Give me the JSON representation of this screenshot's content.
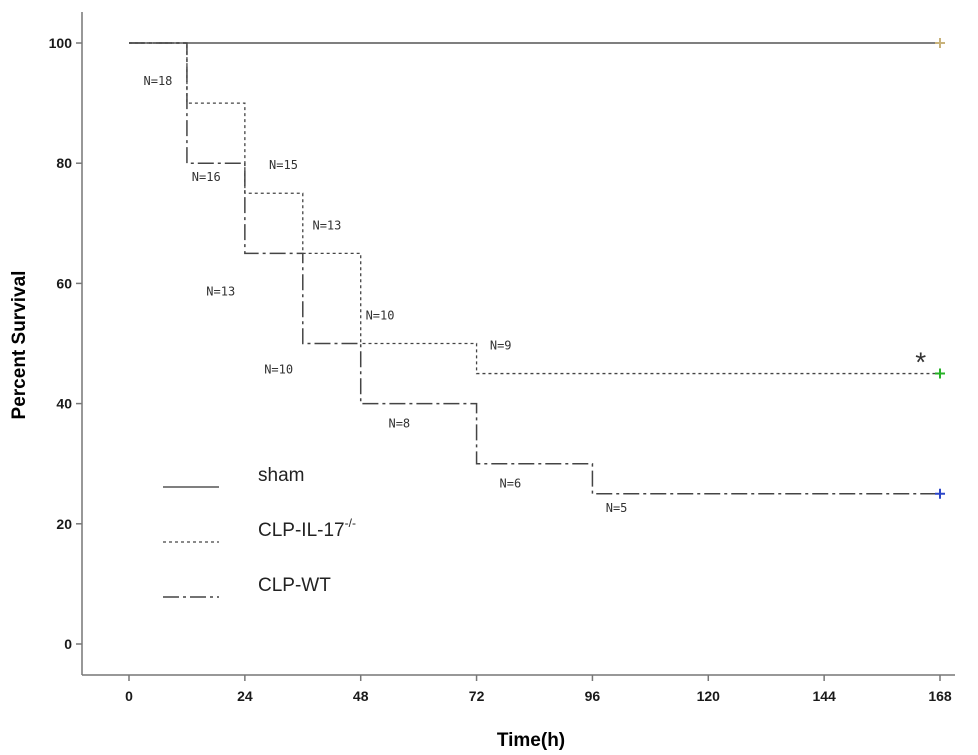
{
  "chart_data": {
    "type": "line",
    "title": "",
    "xlabel": "Time(h)",
    "ylabel": "Percent Survival",
    "xlim": [
      0,
      168
    ],
    "ylim": [
      0,
      100
    ],
    "x_ticks": [
      0,
      24,
      48,
      72,
      96,
      120,
      144,
      168
    ],
    "y_ticks": [
      0,
      20,
      40,
      60,
      80,
      100
    ],
    "grid": false,
    "legend_position": "bottom-left",
    "series": [
      {
        "name": "sham",
        "sup": "",
        "style": "solid",
        "color": "#555555",
        "censor_color": "#c8b27a",
        "x": [
          0,
          168
        ],
        "y": [
          100,
          100
        ]
      },
      {
        "name": "CLP-IL-17",
        "sup": "-/-",
        "style": "dotted",
        "color": "#444444",
        "censor_color": "#27b227",
        "x": [
          0,
          12,
          24,
          36,
          48,
          72,
          168
        ],
        "y": [
          100,
          90,
          75,
          65,
          50,
          45,
          45
        ]
      },
      {
        "name": "CLP-WT",
        "sup": "",
        "style": "dashdot",
        "color": "#444444",
        "censor_color": "#2c46c8",
        "x": [
          0,
          12,
          24,
          36,
          48,
          72,
          96,
          168
        ],
        "y": [
          100,
          80,
          65,
          50,
          40,
          30,
          25,
          25
        ]
      }
    ],
    "annotations": [
      {
        "text": "N=18",
        "x": 6,
        "y": 93
      },
      {
        "text": "N=16",
        "x": 16,
        "y": 77
      },
      {
        "text": "N=15",
        "x": 32,
        "y": 79
      },
      {
        "text": "N=13",
        "x": 41,
        "y": 69
      },
      {
        "text": "N=13",
        "x": 19,
        "y": 58
      },
      {
        "text": "N=10",
        "x": 52,
        "y": 54
      },
      {
        "text": "N=10",
        "x": 31,
        "y": 45
      },
      {
        "text": "N=9",
        "x": 77,
        "y": 49
      },
      {
        "text": "N=8",
        "x": 56,
        "y": 36
      },
      {
        "text": "N=6",
        "x": 79,
        "y": 26
      },
      {
        "text": "N=5",
        "x": 101,
        "y": 22
      }
    ],
    "significance_marker": {
      "text": "*",
      "x": 164,
      "y": 47
    }
  }
}
